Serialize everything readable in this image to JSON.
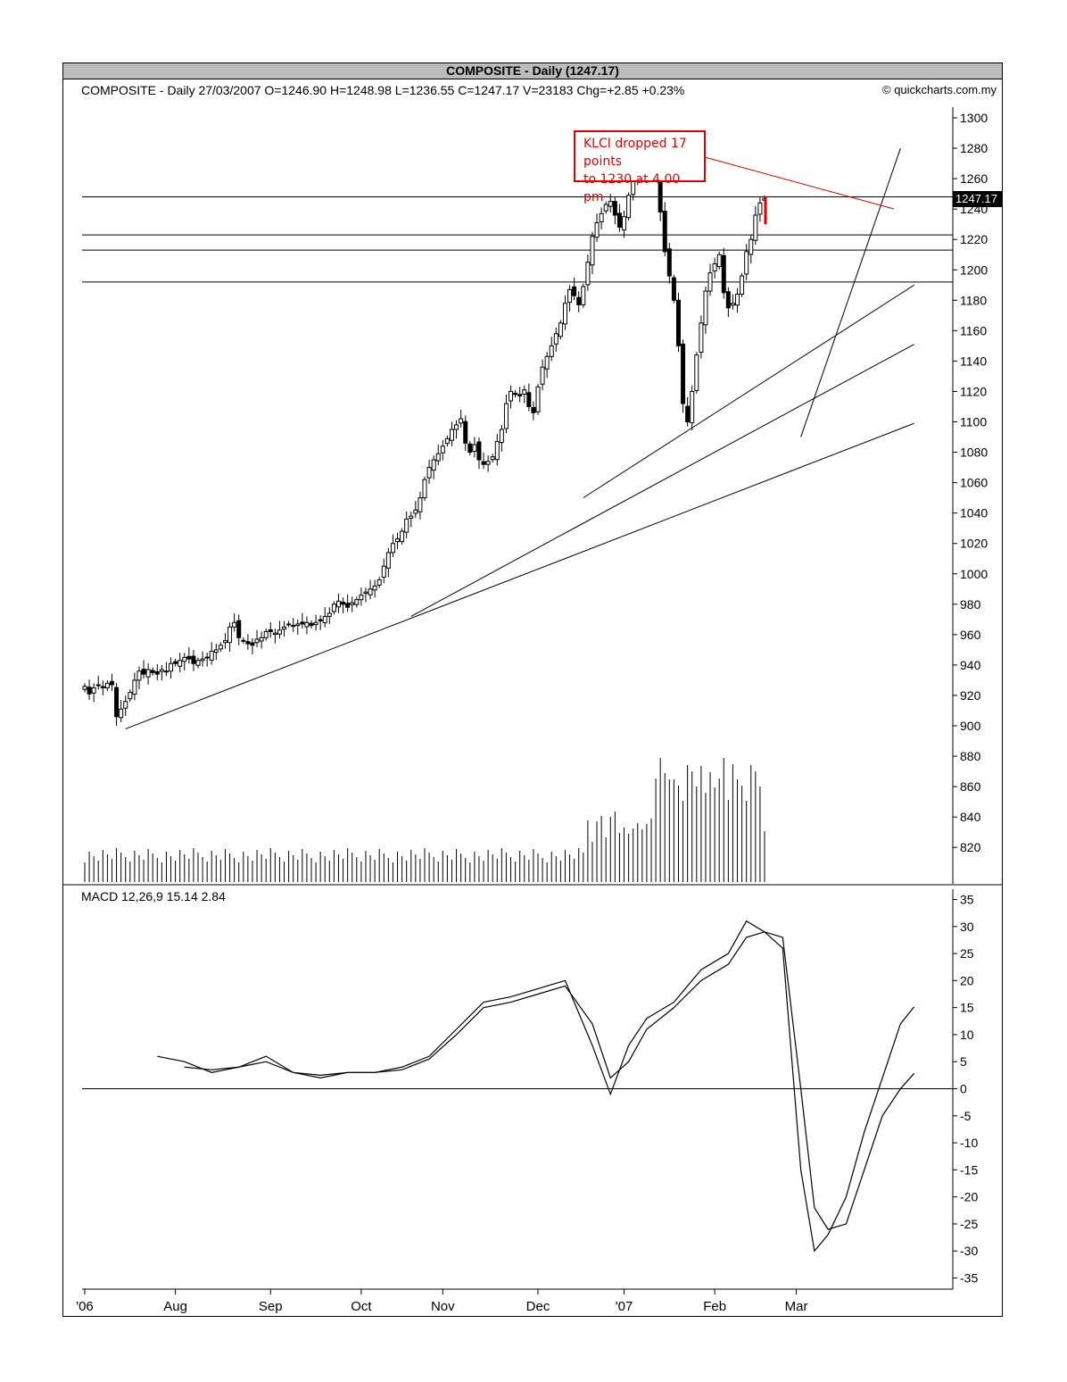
{
  "header": {
    "title": "COMPOSITE - Daily  (1247.17)",
    "info": "COMPOSITE - Daily  27/03/2007   O=1246.90   H=1248.98   L=1236.55   C=1247.17   V=23183   Chg=+2.85   +0.23%",
    "credit": "© quickcharts.com.my"
  },
  "annotation": {
    "line1": "KLCI dropped 17 points",
    "line2": "to 1230 at 4.00 pm",
    "color": "#e00000"
  },
  "last_price_label": "1247.17",
  "macd": {
    "label": "MACD 12,26,9  15.14  2.84"
  },
  "chart_data": [
    {
      "type": "candlestick",
      "title": "COMPOSITE - Daily  (1247.17)",
      "ylim": [
        800,
        1310
      ],
      "y_ticks": [
        820,
        840,
        860,
        880,
        900,
        920,
        940,
        960,
        980,
        1000,
        1020,
        1040,
        1060,
        1080,
        1100,
        1120,
        1140,
        1160,
        1180,
        1200,
        1220,
        1240,
        1260,
        1280,
        1300
      ],
      "x_ticks": [
        "'06",
        "Aug",
        "Sep",
        "Oct",
        "Nov",
        "Dec",
        "'07",
        "Feb",
        "Mar"
      ],
      "x_tick_index": [
        0,
        20,
        41,
        61,
        79,
        100,
        119,
        139,
        157
      ],
      "last_close": 1247.17,
      "horizontal_lines": [
        1248,
        1223,
        1213,
        1192
      ],
      "trendlines": [
        {
          "from": [
            9,
            898
          ],
          "to": [
            183,
            1099
          ]
        },
        {
          "from": [
            72,
            972
          ],
          "to": [
            183,
            1151
          ]
        },
        {
          "from": [
            110,
            1050
          ],
          "to": [
            183,
            1190
          ]
        },
        {
          "from": [
            158,
            1090
          ],
          "to": [
            180,
            1280
          ]
        }
      ],
      "closes": [
        926,
        921,
        925,
        927,
        925,
        928,
        927,
        906,
        911,
        916,
        922,
        930,
        936,
        934,
        937,
        935,
        934,
        937,
        936,
        941,
        941,
        943,
        945,
        944,
        941,
        943,
        944,
        945,
        949,
        950,
        953,
        956,
        965,
        968,
        958,
        956,
        954,
        953,
        957,
        958,
        962,
        962,
        961,
        963,
        965,
        967,
        966,
        967,
        967,
        968,
        966,
        968,
        969,
        972,
        974,
        980,
        982,
        980,
        978,
        981,
        983,
        986,
        988,
        990,
        992,
        996,
        1005,
        1014,
        1020,
        1023,
        1028,
        1036,
        1038,
        1042,
        1050,
        1062,
        1070,
        1075,
        1079,
        1084,
        1089,
        1095,
        1098,
        1102,
        1086,
        1080,
        1085,
        1075,
        1072,
        1074,
        1077,
        1087,
        1095,
        1112,
        1120,
        1118,
        1117,
        1121,
        1110,
        1106,
        1123,
        1136,
        1143,
        1150,
        1158,
        1165,
        1178,
        1187,
        1183,
        1177,
        1189,
        1205,
        1222,
        1231,
        1237,
        1243,
        1245,
        1236,
        1228,
        1235,
        1249,
        1260,
        1274,
        1276,
        1280,
        1283,
        1276,
        1238,
        1212,
        1196,
        1180,
        1150,
        1112,
        1100,
        1120,
        1144,
        1165,
        1186,
        1198,
        1204,
        1210,
        1185,
        1175,
        1178,
        1184,
        1196,
        1212,
        1220,
        1236,
        1244,
        1247
      ],
      "volume_bars": "relative heights only; volumes not labeled"
    },
    {
      "type": "line",
      "title": "MACD 12,26,9",
      "ylim": [
        -35,
        35
      ],
      "y_ticks": [
        -35,
        -30,
        -25,
        -20,
        -15,
        -10,
        -5,
        0,
        5,
        10,
        15,
        20,
        25,
        30,
        35
      ],
      "series": [
        {
          "name": "MACD",
          "value": 15.14,
          "values_x": [
            16,
            22,
            28,
            34,
            40,
            46,
            52,
            58,
            64,
            70,
            76,
            82,
            88,
            94,
            100,
            106,
            112,
            116,
            120,
            124,
            130,
            136,
            142,
            146,
            150,
            154,
            158,
            161,
            164,
            168,
            172,
            176,
            180,
            183
          ],
          "values_y": [
            6,
            5,
            3,
            4,
            6,
            3,
            2.5,
            3,
            3,
            4,
            6,
            11,
            16,
            17,
            18.5,
            20,
            8,
            -1,
            8,
            13,
            16,
            22,
            25,
            31,
            29,
            26,
            -15,
            -30,
            -27,
            -20,
            -8,
            2,
            12,
            15.14
          ]
        },
        {
          "name": "Signal",
          "value": 2.84,
          "values_x": [
            22,
            28,
            34,
            40,
            46,
            52,
            58,
            64,
            70,
            76,
            82,
            88,
            94,
            100,
            106,
            112,
            116,
            120,
            124,
            130,
            136,
            142,
            146,
            150,
            154,
            158,
            161,
            164,
            168,
            172,
            176,
            180,
            183
          ],
          "values_y": [
            4,
            3.5,
            4,
            5,
            3,
            2,
            3,
            3,
            3.5,
            5.5,
            10,
            15,
            16,
            17.5,
            19,
            12,
            2,
            5,
            11,
            15,
            20,
            23,
            28,
            29,
            28,
            0,
            -22,
            -26,
            -25,
            -15,
            -5,
            0,
            2.84
          ]
        }
      ]
    }
  ]
}
